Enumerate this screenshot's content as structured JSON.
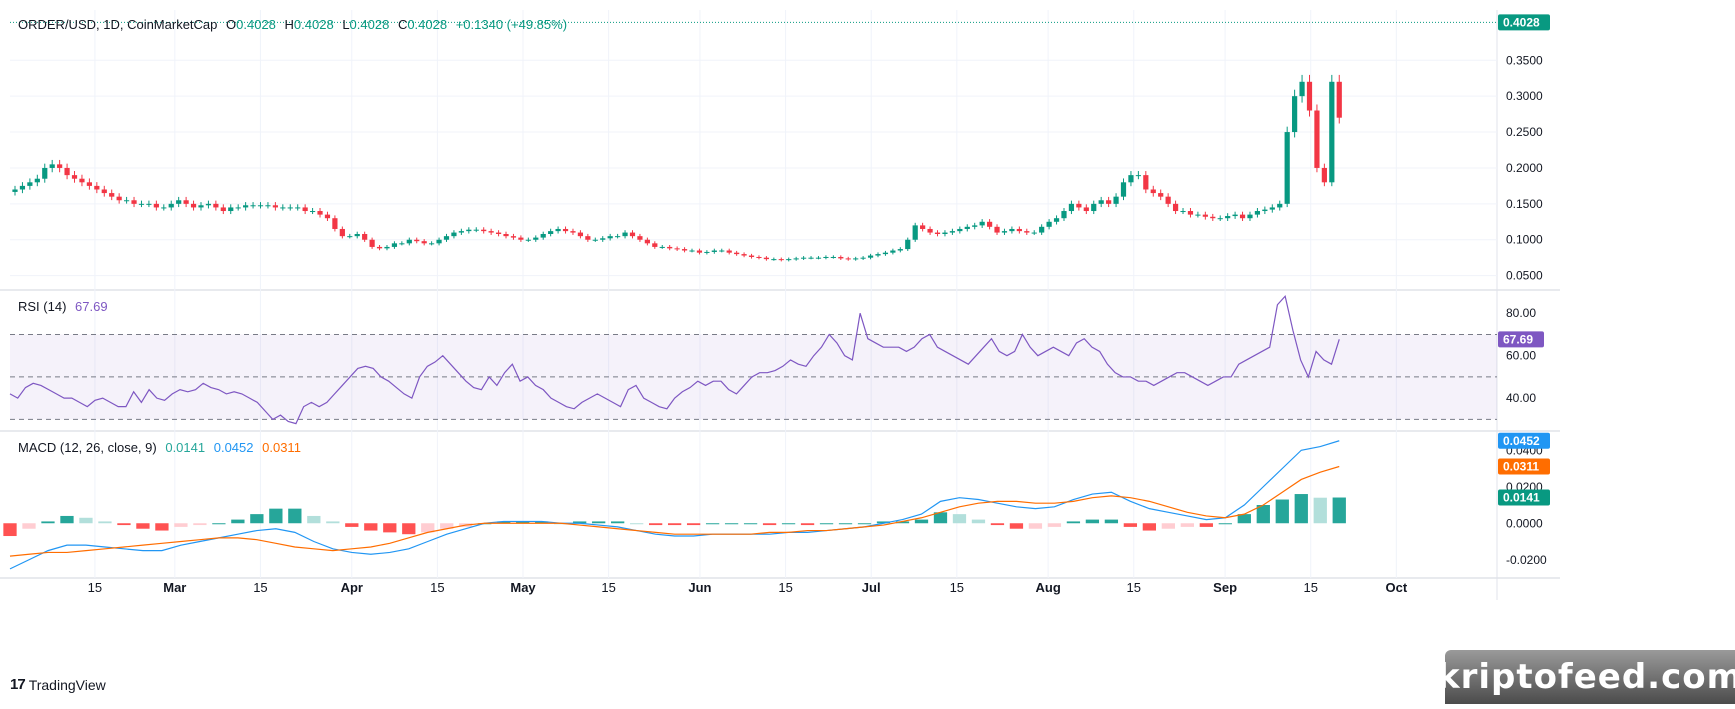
{
  "header": {
    "symbol": "ORDER/USD, 1D, CoinMarketCap",
    "open_label": "O",
    "open": "0.4028",
    "high_label": "H",
    "high": "0.4028",
    "low_label": "L",
    "low": "0.4028",
    "close_label": "C",
    "close": "0.4028",
    "change": "+0.1340 (+49.85%)"
  },
  "rsi_legend": {
    "label": "RSI (14)",
    "value": "67.69"
  },
  "macd_legend": {
    "label": "MACD (12, 26, close, 9)",
    "hist": "0.0141",
    "macd": "0.0452",
    "signal": "0.0311"
  },
  "footer": {
    "brand": "TradingView",
    "logo": "17"
  },
  "watermark": "kriptofeed.com",
  "colors": {
    "up": "#089981",
    "down": "#f23645",
    "rsi": "#7e57c2",
    "macd": "#2196f3",
    "signal": "#ff6d00",
    "hist_up": "#26a69a",
    "hist_up_light": "#b2dfdb",
    "hist_down": "#ff5252",
    "hist_down_light": "#ffcdd2"
  },
  "chart_data": [
    {
      "type": "candlestick",
      "title": "ORDER/USD, 1D, CoinMarketCap",
      "ylim": [
        0.03,
        0.42
      ],
      "yticks": [
        "0.3500",
        "0.3000",
        "0.2500",
        "0.2000",
        "0.1500",
        "0.1000",
        "0.0500"
      ],
      "last_price_label": "0.4028",
      "last_price": 0.4028,
      "x_ticks": [
        "15",
        "Mar",
        "15",
        "Apr",
        "15",
        "May",
        "15",
        "Jun",
        "15",
        "Jul",
        "15",
        "Aug",
        "15",
        "Sep",
        "15",
        "Oct"
      ],
      "x_tick_days": [
        14,
        28,
        43,
        59,
        74,
        89,
        104,
        120,
        135,
        150,
        165,
        181,
        196,
        212,
        227,
        242
      ],
      "closes_approx": [
        0.17,
        0.175,
        0.18,
        0.185,
        0.2,
        0.205,
        0.2,
        0.19,
        0.185,
        0.18,
        0.175,
        0.17,
        0.165,
        0.16,
        0.155,
        0.155,
        0.15,
        0.15,
        0.15,
        0.145,
        0.145,
        0.15,
        0.155,
        0.15,
        0.145,
        0.148,
        0.15,
        0.145,
        0.14,
        0.145,
        0.145,
        0.148,
        0.148,
        0.148,
        0.148,
        0.145,
        0.145,
        0.145,
        0.145,
        0.14,
        0.14,
        0.135,
        0.13,
        0.115,
        0.105,
        0.105,
        0.108,
        0.1,
        0.09,
        0.088,
        0.09,
        0.095,
        0.095,
        0.1,
        0.098,
        0.095,
        0.095,
        0.1,
        0.105,
        0.11,
        0.112,
        0.114,
        0.114,
        0.112,
        0.11,
        0.108,
        0.105,
        0.103,
        0.1,
        0.1,
        0.103,
        0.108,
        0.112,
        0.115,
        0.112,
        0.11,
        0.105,
        0.1,
        0.1,
        0.102,
        0.105,
        0.105,
        0.11,
        0.105,
        0.1,
        0.095,
        0.09,
        0.09,
        0.088,
        0.087,
        0.085,
        0.085,
        0.082,
        0.083,
        0.085,
        0.085,
        0.082,
        0.08,
        0.078,
        0.076,
        0.075,
        0.073,
        0.073,
        0.072,
        0.073,
        0.074,
        0.075,
        0.075,
        0.075,
        0.076,
        0.076,
        0.074,
        0.073,
        0.074,
        0.075,
        0.078,
        0.08,
        0.082,
        0.085,
        0.087,
        0.1,
        0.12,
        0.115,
        0.11,
        0.108,
        0.11,
        0.112,
        0.115,
        0.118,
        0.12,
        0.125,
        0.118,
        0.11,
        0.112,
        0.115,
        0.112,
        0.11,
        0.11,
        0.118,
        0.125,
        0.13,
        0.14,
        0.15,
        0.145,
        0.14,
        0.15,
        0.155,
        0.15,
        0.16,
        0.18,
        0.19,
        0.19,
        0.17,
        0.165,
        0.16,
        0.15,
        0.14,
        0.14,
        0.135,
        0.135,
        0.132,
        0.13,
        0.13,
        0.133,
        0.135,
        0.13,
        0.135,
        0.14,
        0.142,
        0.145,
        0.15,
        0.25,
        0.3,
        0.32,
        0.28,
        0.2,
        0.18,
        0.32,
        0.27
      ]
    },
    {
      "type": "line",
      "title": "RSI (14)",
      "ylim": [
        25,
        90
      ],
      "yticks": [
        "80.00",
        "60.00",
        "40.00"
      ],
      "bands": [
        70,
        50,
        30
      ],
      "last_value": 67.69,
      "values_approx": [
        42,
        40,
        45,
        47,
        46,
        44,
        42,
        40,
        40,
        38,
        36,
        39,
        40,
        38,
        36,
        36,
        43,
        38,
        44,
        40,
        39,
        42,
        44,
        43,
        44,
        47,
        45,
        44,
        42,
        43,
        42,
        40,
        38,
        34,
        30,
        32,
        29,
        28,
        36,
        38,
        36,
        38,
        42,
        46,
        50,
        54,
        55,
        54,
        50,
        48,
        45,
        42,
        40,
        50,
        55,
        57,
        60,
        56,
        52,
        48,
        45,
        44,
        50,
        46,
        52,
        56,
        48,
        50,
        46,
        44,
        40,
        38,
        36,
        35,
        38,
        40,
        42,
        40,
        38,
        36,
        44,
        46,
        40,
        38,
        36,
        35,
        40,
        43,
        45,
        48,
        46,
        48,
        48,
        44,
        42,
        46,
        50,
        52,
        52,
        53,
        55,
        58,
        56,
        55,
        60,
        64,
        70,
        66,
        60,
        58,
        80,
        68,
        66,
        64,
        64,
        64,
        62,
        64,
        68,
        70,
        64,
        62,
        60,
        58,
        56,
        60,
        64,
        68,
        62,
        60,
        62,
        70,
        64,
        60,
        62,
        64,
        62,
        60,
        66,
        68,
        64,
        62,
        56,
        52,
        50,
        50,
        48,
        48,
        46,
        48,
        50,
        52,
        52,
        50,
        48,
        46,
        48,
        50,
        50,
        56,
        58,
        60,
        62,
        64,
        84,
        88,
        72,
        58,
        50,
        62,
        58,
        56,
        67.69
      ]
    },
    {
      "type": "macd",
      "title": "MACD (12, 26, close, 9)",
      "ylim": [
        -0.03,
        0.05
      ],
      "yticks": [
        "0.0400",
        "0.0200",
        "0.0000",
        "-0.0200"
      ],
      "last_values": {
        "histogram": 0.0141,
        "macd": 0.0452,
        "signal": 0.0311
      },
      "macd_approx": [
        -0.025,
        -0.02,
        -0.015,
        -0.012,
        -0.012,
        -0.013,
        -0.014,
        -0.015,
        -0.015,
        -0.012,
        -0.01,
        -0.008,
        -0.006,
        -0.004,
        -0.003,
        -0.005,
        -0.01,
        -0.014,
        -0.016,
        -0.017,
        -0.016,
        -0.014,
        -0.01,
        -0.006,
        -0.003,
        0.0,
        0.001,
        0.001,
        0.001,
        0.0,
        0.0,
        -0.001,
        -0.002,
        -0.004,
        -0.006,
        -0.007,
        -0.007,
        -0.006,
        -0.006,
        -0.006,
        -0.006,
        -0.005,
        -0.005,
        -0.004,
        -0.003,
        -0.002,
        0.0,
        0.002,
        0.005,
        0.012,
        0.014,
        0.013,
        0.011,
        0.009,
        0.008,
        0.009,
        0.013,
        0.016,
        0.017,
        0.012,
        0.008,
        0.006,
        0.004,
        0.002,
        0.003,
        0.01,
        0.02,
        0.03,
        0.04,
        0.042,
        0.0452
      ],
      "signal_approx": [
        -0.018,
        -0.017,
        -0.016,
        -0.016,
        -0.015,
        -0.014,
        -0.013,
        -0.012,
        -0.011,
        -0.01,
        -0.009,
        -0.008,
        -0.008,
        -0.009,
        -0.011,
        -0.013,
        -0.014,
        -0.015,
        -0.014,
        -0.013,
        -0.011,
        -0.008,
        -0.005,
        -0.003,
        -0.001,
        0.0,
        0.0,
        0.0,
        0.0,
        0.0,
        -0.001,
        -0.002,
        -0.003,
        -0.004,
        -0.005,
        -0.006,
        -0.006,
        -0.006,
        -0.006,
        -0.006,
        -0.005,
        -0.005,
        -0.004,
        -0.004,
        -0.003,
        -0.002,
        -0.001,
        0.001,
        0.003,
        0.006,
        0.009,
        0.011,
        0.012,
        0.012,
        0.011,
        0.011,
        0.012,
        0.014,
        0.015,
        0.014,
        0.012,
        0.009,
        0.006,
        0.004,
        0.003,
        0.005,
        0.01,
        0.017,
        0.024,
        0.028,
        0.0311
      ]
    }
  ]
}
